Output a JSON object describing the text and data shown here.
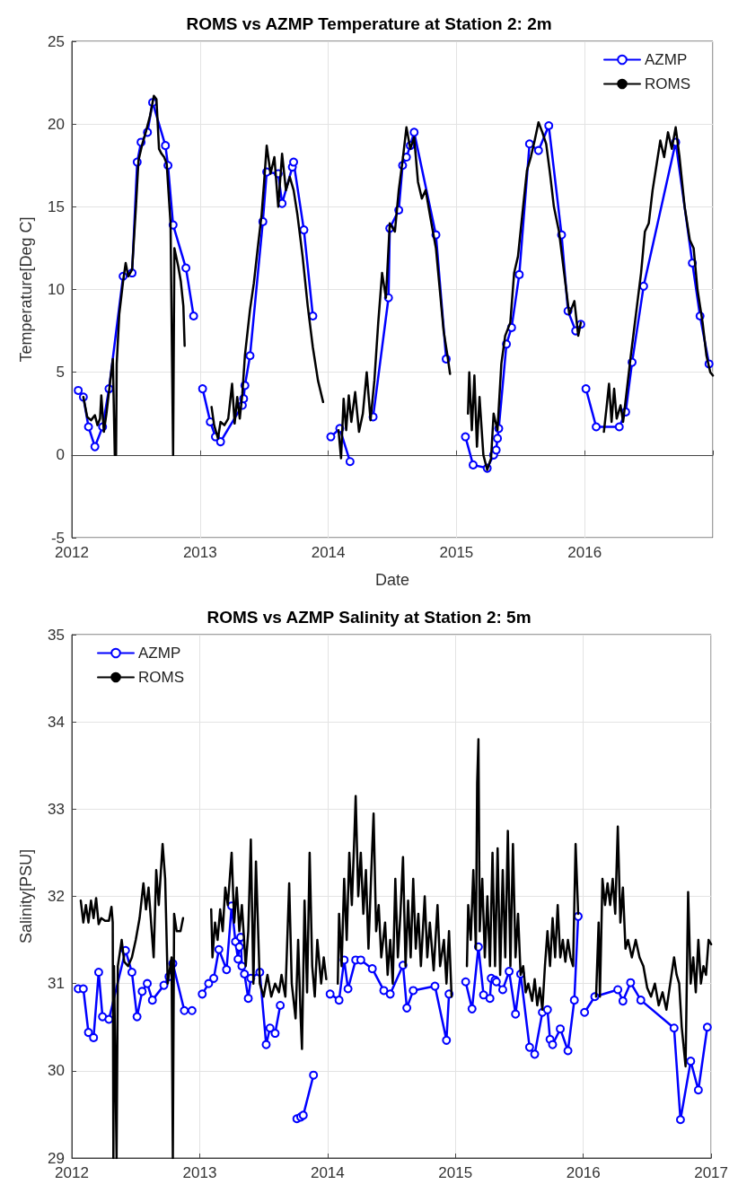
{
  "chart_data": [
    {
      "type": "line",
      "title": "ROMS vs AZMP Temperature at Station 2: 2m",
      "xlabel": "Date",
      "ylabel": "Temperature[Deg C]",
      "xlim": [
        2012,
        2017
      ],
      "xticks": [
        2012,
        2013,
        2014,
        2015,
        2016,
        {
          "value": 2017,
          "label": null
        }
      ],
      "ylim": [
        -5,
        25
      ],
      "yticks": [
        -5,
        0,
        5,
        10,
        15,
        20,
        25
      ],
      "grid": true,
      "legend": "top right",
      "series": [
        {
          "name": "AZMP",
          "color": "#0000ff",
          "marker": "circle",
          "x": [
            2012.05,
            2012.09,
            2012.13,
            2012.18,
            2012.24,
            2012.29,
            2012.4,
            2012.47,
            2012.51,
            2012.54,
            2012.59,
            2012.63,
            2012.73,
            2012.75,
            2012.79,
            2012.89,
            2012.95,
            2012.98,
            2013.02,
            2013.08,
            2013.12,
            2013.16,
            2013.33,
            2013.34,
            2013.35,
            2013.39,
            2013.49,
            2013.52,
            2013.61,
            2013.64,
            2013.72,
            2013.73,
            2013.81,
            2013.88,
            2013.95,
            2014.02,
            2014.09,
            2014.17,
            2014.26,
            2014.35,
            2014.47,
            2014.48,
            2014.55,
            2014.58,
            2014.61,
            2014.64,
            2014.67,
            2014.84,
            2014.92,
            2015.0,
            2015.07,
            2015.13,
            2015.24,
            2015.29,
            2015.31,
            2015.32,
            2015.33,
            2015.39,
            2015.43,
            2015.49,
            2015.57,
            2015.64,
            2015.72,
            2015.82,
            2015.87,
            2015.93,
            2015.97,
            2015.99,
            2016.01,
            2016.09,
            2016.27,
            2016.32,
            2016.37,
            2016.46,
            2016.71,
            2016.84,
            2016.9,
            2016.97
          ],
          "values": [
            3.9,
            3.5,
            1.7,
            0.5,
            1.7,
            4.0,
            10.8,
            11.0,
            17.7,
            18.9,
            19.5,
            21.3,
            18.7,
            17.5,
            13.9,
            11.3,
            8.4,
            null,
            4.0,
            2.0,
            1.1,
            0.8,
            3.0,
            3.4,
            4.2,
            6.0,
            14.1,
            17.1,
            17.0,
            15.2,
            17.4,
            17.7,
            13.6,
            8.4,
            null,
            1.1,
            1.6,
            -0.4,
            null,
            2.3,
            9.5,
            13.7,
            14.8,
            17.5,
            18.0,
            18.7,
            19.5,
            13.3,
            5.8,
            null,
            1.1,
            -0.6,
            -0.8,
            0.0,
            0.3,
            1.0,
            1.6,
            6.7,
            7.7,
            10.9,
            18.8,
            18.4,
            19.9,
            13.3,
            8.7,
            7.5,
            7.9,
            null,
            4.0,
            1.7,
            1.7,
            2.6,
            5.6,
            10.2,
            18.9,
            11.6,
            8.4,
            5.5
          ]
        },
        {
          "name": "ROMS",
          "color": "#000000",
          "marker": "none",
          "x": [
            2012.09,
            2012.12,
            2012.15,
            2012.18,
            2012.2,
            2012.22,
            2012.23,
            2012.25,
            2012.27,
            2012.3,
            2012.32,
            2012.335,
            2012.345,
            2012.35,
            2012.37,
            2012.4,
            2012.42,
            2012.44,
            2012.47,
            2012.5,
            2012.52,
            2012.55,
            2012.58,
            2012.61,
            2012.64,
            2012.66,
            2012.68,
            2012.7,
            2012.72,
            2012.74,
            2012.77,
            2012.79,
            2012.8,
            2012.83,
            2012.85,
            2012.87,
            2012.88,
            2013.0,
            2013.09,
            2013.11,
            2013.14,
            2013.16,
            2013.19,
            2013.22,
            2013.25,
            2013.27,
            2013.29,
            2013.31,
            2013.33,
            2013.35,
            2013.37,
            2013.39,
            2013.42,
            2013.45,
            2013.48,
            2013.5,
            2013.52,
            2013.55,
            2013.58,
            2013.61,
            2013.64,
            2013.67,
            2013.7,
            2013.73,
            2013.76,
            2013.8,
            2013.84,
            2013.88,
            2013.92,
            2013.96,
            2014.0,
            2014.08,
            2014.1,
            2014.12,
            2014.14,
            2014.16,
            2014.18,
            2014.21,
            2014.24,
            2014.27,
            2014.3,
            2014.33,
            2014.36,
            2014.39,
            2014.42,
            2014.45,
            2014.48,
            2014.52,
            2014.55,
            2014.58,
            2014.61,
            2014.64,
            2014.67,
            2014.7,
            2014.73,
            2014.76,
            2014.8,
            2014.84,
            2014.87,
            2014.9,
            2014.93,
            2014.95,
            2015.0,
            2015.09,
            2015.1,
            2015.12,
            2015.14,
            2015.16,
            2015.18,
            2015.21,
            2015.24,
            2015.27,
            2015.29,
            2015.32,
            2015.35,
            2015.38,
            2015.42,
            2015.45,
            2015.48,
            2015.52,
            2015.55,
            2015.58,
            2015.61,
            2015.64,
            2015.67,
            2015.7,
            2015.73,
            2015.76,
            2015.8,
            2015.84,
            2015.88,
            2015.92,
            2015.95,
            2015.97,
            2016.05,
            2016.15,
            2016.17,
            2016.19,
            2016.21,
            2016.23,
            2016.25,
            2016.28,
            2016.3,
            2016.33,
            2016.36,
            2016.4,
            2016.44,
            2016.47,
            2016.5,
            2016.53,
            2016.56,
            2016.59,
            2016.62,
            2016.65,
            2016.68,
            2016.71,
            2016.74,
            2016.78,
            2016.82,
            2016.85,
            2016.88,
            2016.92,
            2016.95,
            2016.98,
            2017.0
          ],
          "values": [
            3.5,
            2.3,
            2.1,
            2.4,
            1.8,
            2.2,
            3.6,
            1.4,
            2.5,
            4.5,
            5.8,
            0,
            0,
            5.5,
            8.5,
            10.5,
            11.6,
            10.8,
            11.2,
            15,
            17.8,
            18.8,
            19.6,
            20.5,
            21.7,
            21.5,
            18.5,
            18.2,
            18.0,
            17.6,
            14,
            0,
            12.5,
            11.4,
            10.5,
            9.0,
            6.6,
            null,
            2.9,
            1.8,
            1.0,
            2.0,
            1.8,
            2.2,
            4.3,
            1.9,
            3.5,
            2.2,
            3.7,
            6.0,
            7.4,
            8.8,
            10.4,
            12.5,
            14.5,
            16.5,
            18.7,
            17.0,
            18.0,
            15.0,
            18.2,
            16.0,
            16.8,
            16.0,
            14.5,
            12.0,
            9.0,
            6.5,
            4.5,
            3.2,
            null,
            1.5,
            -0.2,
            3.4,
            1.5,
            3.6,
            2.0,
            3.8,
            1.4,
            2.5,
            5.0,
            2.1,
            4.5,
            8.0,
            11.0,
            9.5,
            14.0,
            13.5,
            16.0,
            17.8,
            19.8,
            18.5,
            19.2,
            16.5,
            15.5,
            16.0,
            14.2,
            12.5,
            10.0,
            7.5,
            6.0,
            4.9,
            null,
            2.5,
            5.0,
            1.5,
            4.8,
            0.5,
            3.5,
            0.0,
            -0.9,
            -0.2,
            2.5,
            1.5,
            5.5,
            7.2,
            8.0,
            11.0,
            12.0,
            15.0,
            17.2,
            18.0,
            19.0,
            20.1,
            19.5,
            18.8,
            17.0,
            15.0,
            13.5,
            11.0,
            8.5,
            9.3,
            7.2,
            8.0,
            null,
            1.4,
            2.8,
            4.3,
            2.0,
            4.0,
            2.2,
            3.0,
            2.0,
            4.0,
            6.0,
            8.5,
            11.0,
            13.5,
            14.0,
            16.0,
            17.5,
            19.0,
            18.0,
            19.5,
            18.5,
            19.8,
            18.0,
            15.0,
            13.0,
            12.5,
            10.0,
            8.0,
            6.0,
            5.0,
            4.8
          ]
        }
      ]
    },
    {
      "type": "line",
      "title": "ROMS vs AZMP Salinity at Station 2: 5m",
      "ylabel": "Salinity[PSU]",
      "xlim": [
        2012,
        2017
      ],
      "xticks": [
        2012,
        2013,
        2014,
        2015,
        2016,
        2017
      ],
      "ylim": [
        29,
        35
      ],
      "yticks": [
        29,
        30,
        31,
        32,
        33,
        34,
        35
      ],
      "grid": true,
      "legend": "top left",
      "series": [
        {
          "name": "AZMP",
          "color": "#0000ff",
          "marker": "circle",
          "x": [
            2012.05,
            2012.09,
            2012.13,
            2012.17,
            2012.21,
            2012.24,
            2012.29,
            2012.42,
            2012.47,
            2012.51,
            2012.55,
            2012.59,
            2012.63,
            2012.72,
            2012.76,
            2012.79,
            2012.88,
            2012.94,
            2012.98,
            2013.02,
            2013.07,
            2013.11,
            2013.15,
            2013.21,
            2013.25,
            2013.28,
            2013.3,
            2013.31,
            2013.32,
            2013.33,
            2013.35,
            2013.38,
            2013.4,
            2013.47,
            2013.52,
            2013.55,
            2013.59,
            2013.63,
            2013.7,
            2013.76,
            2013.79,
            2013.81,
            2013.89,
            2013.95,
            2014.02,
            2014.09,
            2014.13,
            2014.16,
            2014.22,
            2014.26,
            2014.35,
            2014.44,
            2014.49,
            2014.59,
            2014.62,
            2014.67,
            2014.84,
            2014.93,
            2014.95,
            2015.0,
            2015.08,
            2015.13,
            2015.18,
            2015.22,
            2015.27,
            2015.28,
            2015.31,
            2015.32,
            2015.37,
            2015.42,
            2015.47,
            2015.51,
            2015.58,
            2015.62,
            2015.68,
            2015.72,
            2015.74,
            2015.76,
            2015.82,
            2015.88,
            2015.93,
            2015.96,
            2015.99,
            2016.01,
            2016.09,
            2016.27,
            2016.31,
            2016.37,
            2016.45,
            2016.71,
            2016.76,
            2016.84,
            2016.9,
            2016.97
          ],
          "values": [
            30.94,
            30.94,
            30.44,
            30.38,
            31.13,
            30.62,
            30.59,
            31.38,
            31.13,
            30.62,
            30.91,
            31.0,
            30.81,
            30.98,
            31.08,
            31.23,
            30.69,
            30.69,
            null,
            30.88,
            31.0,
            31.06,
            31.39,
            31.16,
            31.89,
            31.48,
            31.28,
            31.42,
            31.53,
            31.2,
            31.11,
            30.83,
            31.06,
            31.13,
            30.3,
            30.49,
            30.43,
            30.75,
            null,
            29.45,
            29.47,
            29.49,
            29.95,
            null,
            30.88,
            30.81,
            31.27,
            30.94,
            31.27,
            31.27,
            31.17,
            30.92,
            30.88,
            31.21,
            30.72,
            30.92,
            30.97,
            30.35,
            30.88,
            null,
            31.02,
            30.71,
            31.42,
            30.87,
            30.83,
            31.06,
            31.04,
            31.02,
            30.93,
            31.14,
            30.65,
            31.11,
            30.27,
            30.19,
            30.67,
            30.7,
            30.36,
            30.3,
            30.48,
            30.23,
            30.81,
            31.77,
            null,
            30.67,
            30.85,
            30.93,
            30.8,
            31.01,
            30.81,
            30.49,
            29.44,
            30.11,
            29.78,
            30.5
          ]
        },
        {
          "name": "ROMS",
          "color": "#000000",
          "marker": "none",
          "x": [
            2012.07,
            2012.09,
            2012.11,
            2012.13,
            2012.15,
            2012.17,
            2012.19,
            2012.21,
            2012.23,
            2012.26,
            2012.29,
            2012.31,
            2012.32,
            2012.325,
            2012.33,
            2012.35,
            2012.36,
            2012.39,
            2012.41,
            2012.44,
            2012.47,
            2012.5,
            2012.53,
            2012.56,
            2012.58,
            2012.6,
            2012.62,
            2012.64,
            2012.66,
            2012.68,
            2012.71,
            2012.73,
            2012.75,
            2012.78,
            2012.79,
            2012.8,
            2012.82,
            2012.85,
            2012.87,
            2013.0,
            2013.09,
            2013.1,
            2013.12,
            2013.14,
            2013.16,
            2013.18,
            2013.2,
            2013.22,
            2013.25,
            2013.27,
            2013.29,
            2013.31,
            2013.33,
            2013.36,
            2013.38,
            2013.4,
            2013.42,
            2013.44,
            2013.47,
            2013.5,
            2013.53,
            2013.56,
            2013.59,
            2013.62,
            2013.64,
            2013.67,
            2013.7,
            2013.72,
            2013.75,
            2013.77,
            2013.79,
            2013.8,
            2013.82,
            2013.84,
            2013.86,
            2013.88,
            2013.9,
            2013.92,
            2013.95,
            2013.97,
            2013.99,
            2014.04,
            2014.08,
            2014.09,
            2014.11,
            2014.13,
            2014.15,
            2014.17,
            2014.19,
            2014.21,
            2014.22,
            2014.24,
            2014.26,
            2014.28,
            2014.3,
            2014.32,
            2014.34,
            2014.36,
            2014.38,
            2014.4,
            2014.42,
            2014.45,
            2014.47,
            2014.49,
            2014.51,
            2014.53,
            2014.55,
            2014.57,
            2014.59,
            2014.61,
            2014.63,
            2014.65,
            2014.67,
            2014.69,
            2014.71,
            2014.73,
            2014.76,
            2014.78,
            2014.8,
            2014.83,
            2014.86,
            2014.88,
            2014.91,
            2014.93,
            2014.95,
            2014.97,
            2015.03,
            2015.09,
            2015.1,
            2015.12,
            2015.14,
            2015.16,
            2015.17,
            2015.18,
            2015.19,
            2015.21,
            2015.23,
            2015.25,
            2015.27,
            2015.29,
            2015.31,
            2015.33,
            2015.35,
            2015.37,
            2015.39,
            2015.41,
            2015.43,
            2015.45,
            2015.47,
            2015.49,
            2015.51,
            2015.53,
            2015.55,
            2015.57,
            2015.6,
            2015.62,
            2015.64,
            2015.66,
            2015.68,
            2015.7,
            2015.72,
            2015.74,
            2015.76,
            2015.78,
            2015.8,
            2015.82,
            2015.84,
            2015.86,
            2015.88,
            2015.9,
            2015.92,
            2015.94,
            2015.96,
            2016.03,
            2016.1,
            2016.12,
            2016.13,
            2016.15,
            2016.17,
            2016.19,
            2016.21,
            2016.23,
            2016.25,
            2016.27,
            2016.29,
            2016.31,
            2016.33,
            2016.35,
            2016.38,
            2016.41,
            2016.44,
            2016.47,
            2016.5,
            2016.53,
            2016.56,
            2016.59,
            2016.62,
            2016.65,
            2016.68,
            2016.71,
            2016.73,
            2016.75,
            2016.77,
            2016.79,
            2016.8,
            2016.82,
            2016.84,
            2016.86,
            2016.88,
            2016.9,
            2016.92,
            2016.94,
            2016.96,
            2016.98,
            2017.0
          ],
          "values": [
            31.95,
            31.7,
            31.9,
            31.7,
            31.95,
            31.75,
            31.98,
            31.68,
            31.75,
            31.72,
            31.72,
            31.88,
            31.7,
            29,
            31.2,
            29,
            31.2,
            31.5,
            31.25,
            31.2,
            31.3,
            31.5,
            31.75,
            32.15,
            31.85,
            32.1,
            31.7,
            31.3,
            32.3,
            31.9,
            32.6,
            32.2,
            31.0,
            31.3,
            29,
            31.8,
            31.6,
            31.6,
            31.75,
            null,
            31.85,
            31.3,
            31.7,
            31.5,
            31.85,
            31.6,
            32.1,
            31.9,
            32.5,
            31.7,
            32.1,
            31.6,
            31.9,
            31.2,
            31.6,
            32.65,
            31.0,
            32.4,
            31.0,
            30.85,
            31.1,
            30.85,
            31.0,
            30.9,
            31.1,
            30.85,
            32.15,
            31.0,
            30.6,
            31.5,
            30.6,
            30.25,
            31.95,
            30.9,
            32.5,
            31.2,
            30.85,
            31.5,
            31.0,
            31.3,
            31.05,
            null,
            31.0,
            31.8,
            31.2,
            32.2,
            31.5,
            32.5,
            31.9,
            32.7,
            33.15,
            32.0,
            32.5,
            31.8,
            32.3,
            31.4,
            32.2,
            32.95,
            31.6,
            31.9,
            31.3,
            31.7,
            31.1,
            31.5,
            31.0,
            32.2,
            31.3,
            31.8,
            32.45,
            31.2,
            31.95,
            31.3,
            32.2,
            31.4,
            31.8,
            31.2,
            32.0,
            31.3,
            31.7,
            31.15,
            31.9,
            31.2,
            31.5,
            31.0,
            31.6,
            30.85,
            null,
            31.2,
            31.9,
            31.5,
            32.3,
            31.4,
            33.3,
            33.8,
            31.6,
            32.2,
            31.3,
            32.0,
            31.2,
            32.5,
            31.2,
            32.55,
            31.1,
            32.3,
            31.3,
            32.75,
            31.2,
            32.6,
            31.3,
            31.8,
            31.1,
            31.2,
            30.9,
            31.0,
            30.8,
            31.05,
            30.75,
            30.95,
            30.7,
            31.2,
            31.6,
            31.2,
            31.75,
            31.3,
            31.9,
            31.3,
            31.5,
            31.25,
            31.5,
            31.3,
            31.2,
            32.6,
            31.8,
            null,
            30.85,
            31.7,
            30.85,
            32.2,
            31.9,
            32.15,
            31.9,
            32.2,
            31.8,
            32.8,
            31.7,
            32.1,
            31.4,
            31.5,
            31.3,
            31.5,
            31.3,
            31.2,
            30.95,
            30.85,
            31.0,
            30.75,
            30.9,
            30.7,
            31.0,
            31.3,
            31.1,
            31.0,
            30.5,
            30.2,
            30.05,
            32.05,
            31.0,
            31.3,
            30.9,
            31.5,
            31.0,
            31.2,
            31.1,
            31.5,
            31.45
          ]
        }
      ]
    }
  ]
}
